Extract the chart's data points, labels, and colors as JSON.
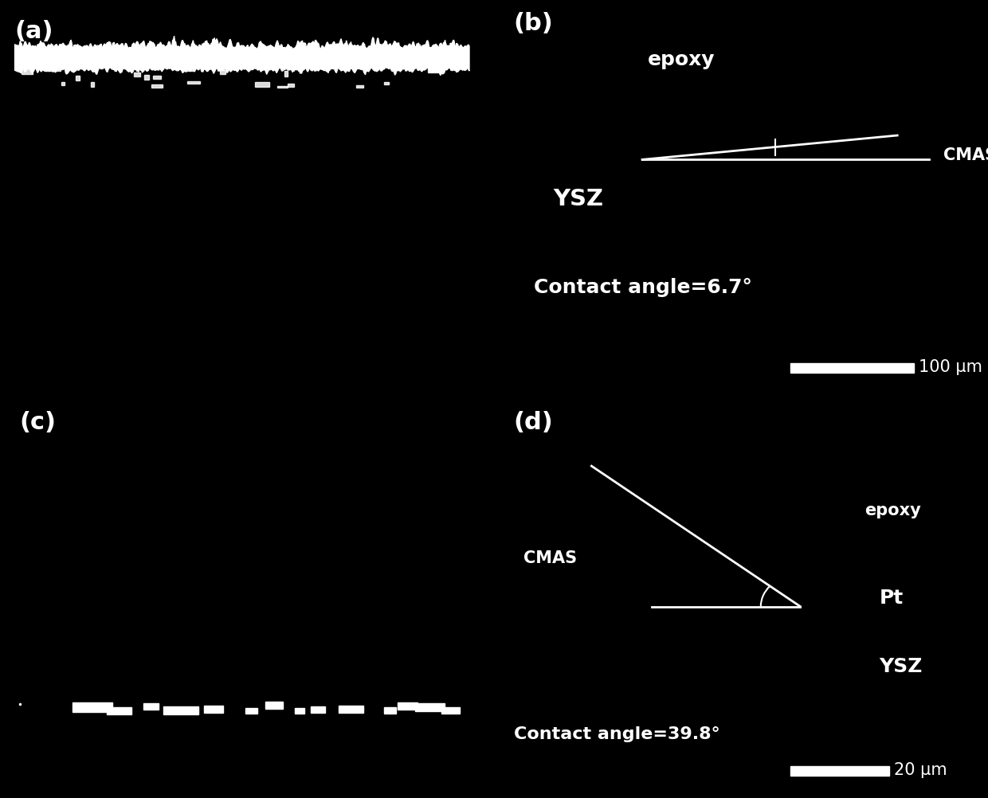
{
  "bg_color": "#000000",
  "text_color": "#ffffff",
  "panel_a_label": "(a)",
  "panel_b_label": "(b)",
  "panel_c_label": "(c)",
  "panel_d_label": "(d)",
  "panel_b_epoxy": "epoxy",
  "panel_b_ysz": "YSZ",
  "panel_b_cmas": "CMAS",
  "panel_b_contact": "Contact angle=6.7°",
  "panel_b_scalebar": "100 μm",
  "panel_d_epoxy": "epoxy",
  "panel_d_cmas": "CMAS",
  "panel_d_pt": "Pt",
  "panel_d_ysz": "YSZ",
  "panel_d_contact": "Contact angle=39.8°",
  "panel_d_scalebar": "20 μm",
  "label_fontsize": 22,
  "text_fontsize": 18,
  "contact_fontsize": 18,
  "scalebar_fontsize": 15
}
